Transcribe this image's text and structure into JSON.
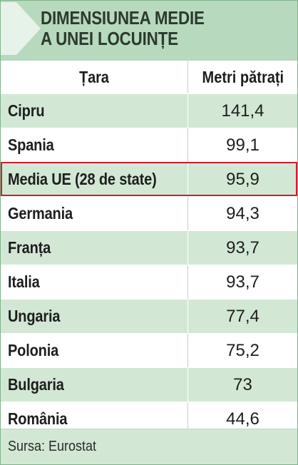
{
  "colors": {
    "header_bg": "#b7d9bd",
    "row_alt_bg": "#d2e8d5",
    "row_bg": "#ffffff",
    "highlight_border": "#c9202f",
    "title_text": "#2b3a2f"
  },
  "header": {
    "title": "DIMENSIUNEA MEDIE\nA UNEI LOCUINȚE",
    "icon": "arrow-right-icon"
  },
  "chart_data": {
    "type": "table",
    "title": "DIMENSIUNEA MEDIE A UNEI LOCUINȚE",
    "columns": [
      "Țara",
      "Metri pătrați"
    ],
    "rows": [
      {
        "country": "Cipru",
        "value": "141,4"
      },
      {
        "country": "Spania",
        "value": "99,1"
      },
      {
        "country": "Media UE (28 de state)",
        "value": "95,9",
        "highlighted": true
      },
      {
        "country": "Germania",
        "value": "94,3"
      },
      {
        "country": "Franța",
        "value": "93,7"
      },
      {
        "country": "Italia",
        "value": "93,7"
      },
      {
        "country": "Ungaria",
        "value": "77,4"
      },
      {
        "country": "Polonia",
        "value": "75,2"
      },
      {
        "country": "Bulgaria",
        "value": "73"
      },
      {
        "country": "România",
        "value": "44,6"
      }
    ],
    "source": "Sursa: Eurostat"
  }
}
